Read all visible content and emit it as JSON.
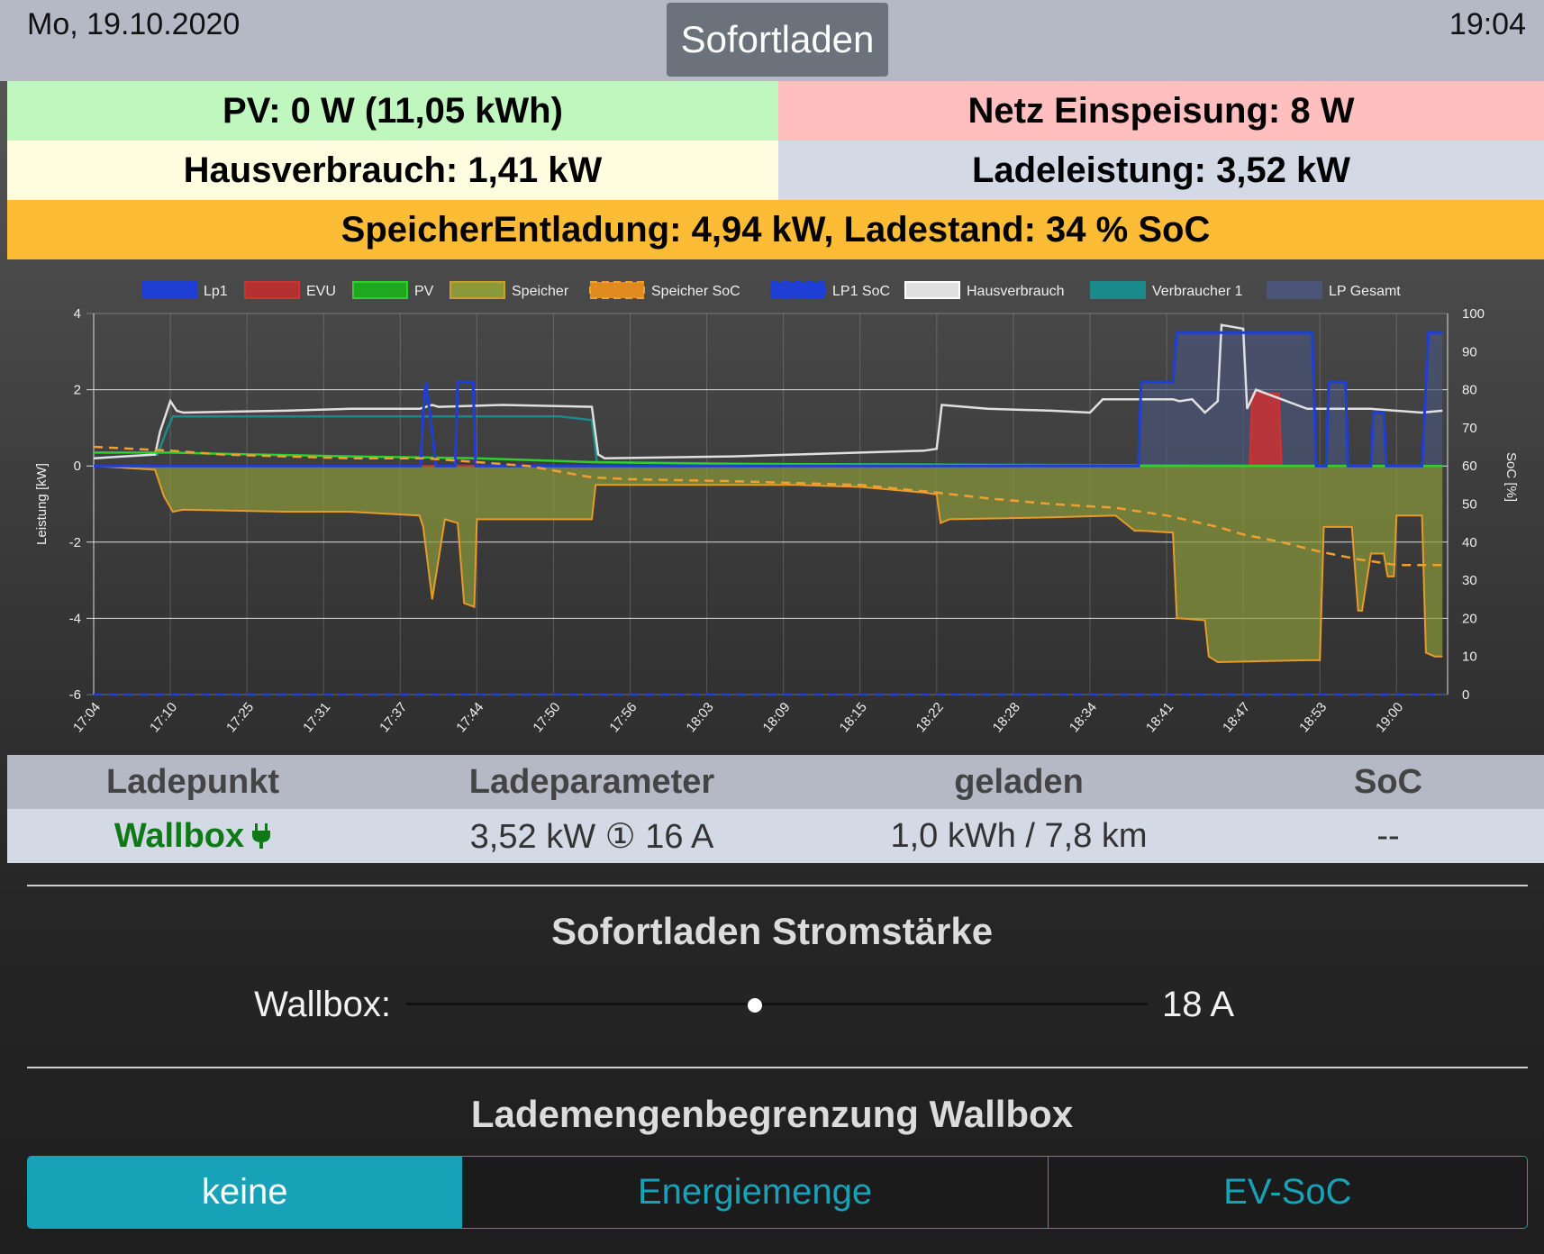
{
  "header": {
    "date": "Mo, 19.10.2020",
    "time": "19:04",
    "mode": "Sofortladen"
  },
  "tiles": {
    "pv": "PV: 0 W (11,05 kWh)",
    "grid": "Netz Einspeisung: 8 W",
    "house": "Hausverbrauch: 1,41 kW",
    "charge": "Ladeleistung: 3,52 kW",
    "battery": "SpeicherEntladung: 4,94 kW, Ladestand: 34 % SoC"
  },
  "colors": {
    "pv_tile": "#bff7be",
    "grid_tile": "#ffbfbf",
    "house_tile": "#fffde0",
    "charge_tile": "#d4d9e6",
    "battery_tile": "#fdbc36",
    "accent": "#17a2b8",
    "plug_green": "#0e7a17"
  },
  "chart_data": {
    "type": "line",
    "xlabel": "",
    "ylabel": "Leistung [kW]",
    "y2label": "SoC [%]",
    "ylim": [
      -6,
      4
    ],
    "y2lim": [
      0,
      100
    ],
    "yticks": [
      4,
      2,
      0,
      -2,
      -4,
      -6
    ],
    "y2ticks": [
      100,
      90,
      80,
      70,
      60,
      50,
      40,
      30,
      20,
      10,
      0
    ],
    "grid": true,
    "legend_position": "top",
    "categories": [
      "17:04",
      "17:10",
      "17:25",
      "17:31",
      "17:37",
      "17:44",
      "17:50",
      "17:56",
      "18:03",
      "18:09",
      "18:15",
      "18:22",
      "18:28",
      "18:34",
      "18:41",
      "18:47",
      "18:53",
      "19:00"
    ],
    "x_minutes": [
      0,
      6,
      12,
      18,
      24,
      30,
      36,
      42,
      48,
      54,
      60,
      66,
      72,
      78,
      84,
      90,
      96,
      102
    ],
    "x_max_minutes": 106,
    "legend": [
      "Lp1",
      "EVU",
      "PV",
      "Speicher",
      "Speicher SoC",
      "LP1 SoC",
      "Hausverbrauch",
      "Verbraucher 1",
      "LP Gesamt"
    ],
    "series": [
      {
        "name": "Speicher",
        "color": "#8a9a3a",
        "fill": true,
        "x": [
          0,
          4.8,
          5.5,
          6.2,
          7,
          15,
          20,
          25.5,
          25.8,
          26.5,
          27.5,
          28,
          28.5,
          29,
          29.8,
          30,
          39,
          39.3,
          55,
          60,
          65,
          66,
          66.3,
          67,
          75,
          80,
          81.5,
          82,
          84.5,
          84.8,
          85,
          87,
          87.3,
          88,
          95,
          96,
          96.3,
          97,
          98.5,
          99,
          99.3,
          100,
          101,
          101.3,
          101.8,
          102,
          104,
          104.3,
          105,
          105.6
        ],
        "y": [
          0,
          -0.1,
          -0.8,
          -1.2,
          -1.15,
          -1.2,
          -1.2,
          -1.3,
          -1.6,
          -3.5,
          -1.4,
          -1.45,
          -1.5,
          -3.6,
          -3.7,
          -1.4,
          -1.4,
          -0.5,
          -0.5,
          -0.55,
          -0.7,
          -0.75,
          -1.5,
          -1.4,
          -1.35,
          -1.3,
          -1.7,
          -1.7,
          -1.75,
          -4.0,
          -4.0,
          -4.05,
          -5.0,
          -5.15,
          -5.1,
          -5.1,
          -1.6,
          -1.6,
          -1.6,
          -3.8,
          -3.8,
          -2.3,
          -2.3,
          -2.9,
          -2.9,
          -1.3,
          -1.3,
          -4.9,
          -5.0,
          -5.0
        ]
      },
      {
        "name": "Hausverbrauch",
        "color": "#e0e0e0",
        "x": [
          0,
          4.8,
          5.2,
          6.0,
          6.5,
          7,
          15,
          20,
          25.5,
          26.5,
          27,
          32,
          39,
          39.5,
          40,
          50,
          55,
          60,
          65,
          66,
          66.4,
          70,
          75,
          78,
          79,
          84.5,
          85,
          86,
          87,
          88,
          88.3,
          90,
          90.3,
          91,
          95,
          100,
          104,
          105.6
        ],
        "y": [
          0.2,
          0.3,
          0.9,
          1.7,
          1.45,
          1.4,
          1.45,
          1.5,
          1.5,
          1.6,
          1.55,
          1.6,
          1.55,
          0.3,
          0.2,
          0.25,
          0.3,
          0.35,
          0.4,
          0.45,
          1.6,
          1.5,
          1.45,
          1.4,
          1.75,
          1.75,
          1.7,
          1.75,
          1.4,
          1.7,
          3.7,
          3.6,
          1.5,
          2.0,
          1.5,
          1.5,
          1.4,
          1.45
        ]
      },
      {
        "name": "Verbraucher 1",
        "color": "#1a8a8a",
        "x": [
          0,
          5,
          5.8,
          6.2,
          15,
          25.5,
          36.5,
          39,
          39.4,
          55,
          105.6
        ],
        "y": [
          0.2,
          0.3,
          1.0,
          1.3,
          1.3,
          1.3,
          1.3,
          1.2,
          0.1,
          0.05,
          0.0
        ]
      },
      {
        "name": "PV",
        "color": "#2ed02e",
        "x": [
          0,
          6,
          10,
          20,
          30,
          39,
          50,
          66,
          80,
          105.6
        ],
        "y": [
          0.35,
          0.35,
          0.32,
          0.25,
          0.2,
          0.1,
          0.05,
          0.03,
          0.0,
          0.0
        ]
      },
      {
        "name": "EVU",
        "color": "#cc3333",
        "fill": true,
        "x": [
          0,
          84.5,
          90.5,
          90.7,
          92.8,
          93,
          105.6
        ],
        "y": [
          0,
          0,
          0,
          1.9,
          1.9,
          0,
          0
        ]
      },
      {
        "name": "LP Gesamt",
        "color": "#4a5478",
        "fill": true,
        "x": [
          0,
          81.8,
          82,
          84.5,
          84.8,
          95.4,
          95.7,
          96.5,
          96.7,
          98,
          98.2,
          100,
          100.2,
          101,
          101.2,
          104,
          104.5,
          105.6
        ],
        "y": [
          0,
          0,
          2.2,
          2.2,
          3.5,
          3.5,
          0.0,
          0.0,
          2.2,
          2.2,
          0.0,
          0.0,
          1.4,
          1.4,
          0.0,
          0.0,
          3.5,
          3.5
        ]
      },
      {
        "name": "Lp1",
        "color": "#1f3fd4",
        "x": [
          0,
          25.6,
          25.8,
          26.0,
          26.4,
          26.8,
          27,
          28.3,
          28.5,
          29.7,
          29.9,
          81.8,
          82,
          84.5,
          84.8,
          95.4,
          95.7,
          96.5,
          96.7,
          98,
          98.2,
          100,
          100.2,
          101,
          101.2,
          104,
          104.5,
          105.6
        ],
        "y": [
          0,
          0,
          1.4,
          2.2,
          1.2,
          0,
          0,
          0,
          2.2,
          2.2,
          0,
          0,
          2.2,
          2.2,
          3.5,
          3.5,
          0.0,
          0.0,
          2.2,
          2.2,
          0.0,
          0.0,
          1.4,
          1.4,
          0.0,
          0.0,
          3.5,
          3.5
        ]
      },
      {
        "name": "Speicher SoC",
        "color": "#f0a030",
        "dashed": true,
        "axis": "right",
        "x": [
          0,
          6,
          10,
          20,
          26,
          28,
          30,
          34,
          39,
          42,
          50,
          55,
          60,
          66,
          70,
          75,
          80,
          84,
          88,
          90,
          93,
          96,
          99,
          102,
          105.6
        ],
        "y": [
          65,
          64,
          63,
          62,
          62,
          61.5,
          61,
          60,
          57,
          56.5,
          56,
          55.5,
          55,
          53,
          51.5,
          50,
          49,
          47,
          44,
          42,
          40,
          37.5,
          35.5,
          34,
          34
        ]
      },
      {
        "name": "LP1 SoC",
        "color": "#1f3fd4",
        "dashed": true,
        "axis": "right",
        "x": [
          0,
          105.6
        ],
        "y": [
          0,
          0
        ]
      }
    ]
  },
  "table": {
    "headers": [
      "Ladepunkt",
      "Ladeparameter",
      "geladen",
      "SoC"
    ],
    "row": {
      "name": "Wallbox",
      "params": "3,52 kW ① 16 A",
      "charged": "1,0 kWh / 7,8 km",
      "soc": "--"
    }
  },
  "sofort": {
    "title": "Sofortladen Stromstärke",
    "label": "Wallbox:",
    "value": "18 A",
    "slider_fraction": 0.47
  },
  "limit": {
    "title": "Lademengenbegrenzung Wallbox",
    "options": [
      "keine",
      "Energiemenge",
      "EV-SoC"
    ],
    "active": "keine"
  }
}
